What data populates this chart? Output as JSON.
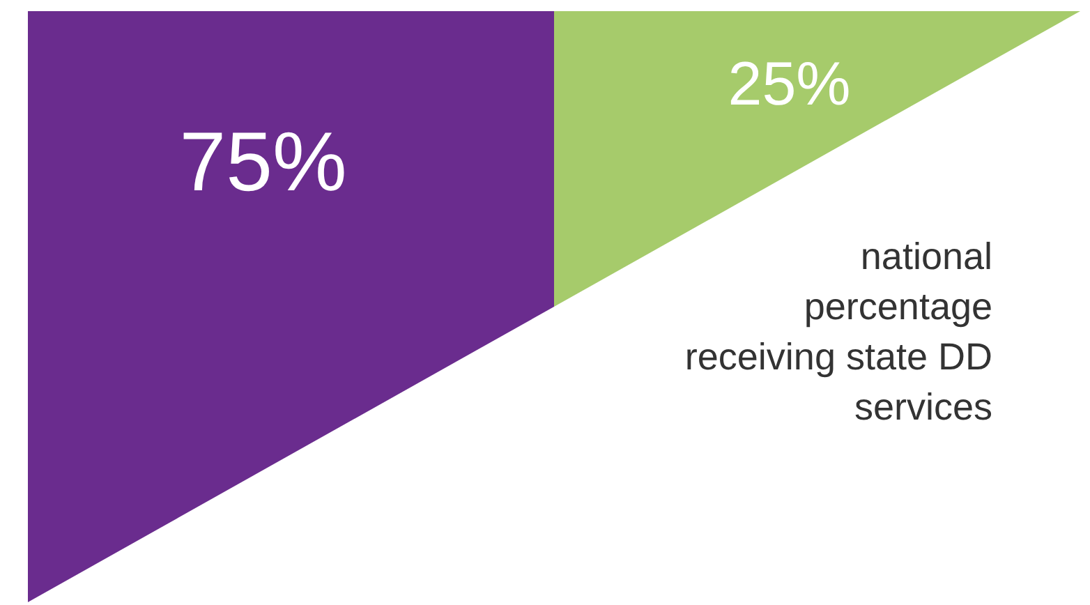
{
  "chart_data": {
    "type": "other",
    "categories": [
      null,
      null
    ],
    "values": [
      75,
      25
    ],
    "colors": [
      "#6a2c8e",
      "#a6cb6b"
    ],
    "value_labels": [
      "75%",
      "25%"
    ],
    "annotations": [
      "national percentage receiving state DD services"
    ]
  }
}
